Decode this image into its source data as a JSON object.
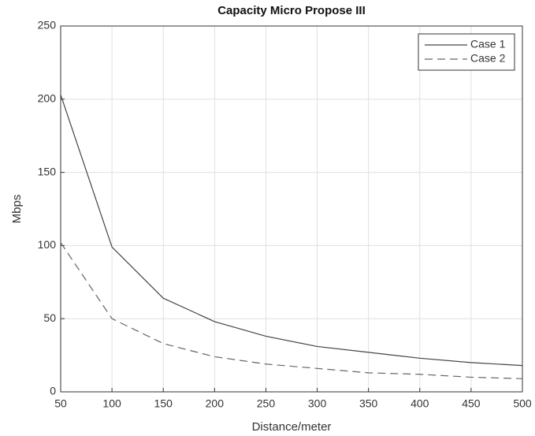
{
  "chart_data": {
    "type": "line",
    "title": "Capacity Micro Propose III",
    "x_label": "Distance/meter",
    "y_label": "Mbps",
    "x": [
      50,
      100,
      150,
      200,
      250,
      300,
      350,
      400,
      450,
      500
    ],
    "series": [
      {
        "name": "Case 1",
        "color": "#444444",
        "line_style": "solid",
        "values": [
          203,
          99,
          64,
          48,
          38,
          31,
          27,
          23,
          20,
          18
        ]
      },
      {
        "name": "Case 2",
        "color": "#666666",
        "line_style": "dashed",
        "values": [
          102,
          50,
          33,
          24,
          19,
          16,
          13,
          12,
          10,
          9
        ]
      }
    ],
    "xlim": [
      50,
      500
    ],
    "xticks": [
      50,
      100,
      150,
      200,
      250,
      300,
      350,
      400,
      450,
      500
    ],
    "ylim": [
      0,
      250
    ],
    "yticks": [
      0,
      50,
      100,
      150,
      200,
      250
    ],
    "grid": true,
    "legend_position": "northeast"
  }
}
